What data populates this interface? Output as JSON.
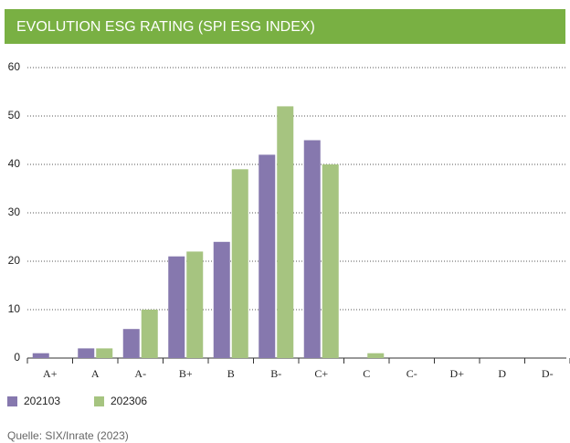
{
  "chart_data": {
    "type": "bar",
    "title": "EVOLUTION ESG RATING (SPI ESG INDEX)",
    "categories": [
      "A+",
      "A",
      "A-",
      "B+",
      "B",
      "B-",
      "C+",
      "C",
      "C-",
      "D+",
      "D",
      "D-"
    ],
    "series": [
      {
        "name": "202103",
        "color": "#8678ae",
        "values": [
          1,
          2,
          6,
          21,
          24,
          42,
          45,
          0,
          0,
          0,
          0,
          0
        ]
      },
      {
        "name": "202306",
        "color": "#a6c480",
        "values": [
          0,
          2,
          10,
          22,
          39,
          52,
          40,
          1,
          0,
          0,
          0,
          0
        ]
      }
    ],
    "ylim": [
      0,
      60
    ],
    "yticks": [
      0,
      10,
      20,
      30,
      40,
      50,
      60
    ],
    "grid": true,
    "source": "Quelle: SIX/Inrate (2023)"
  }
}
